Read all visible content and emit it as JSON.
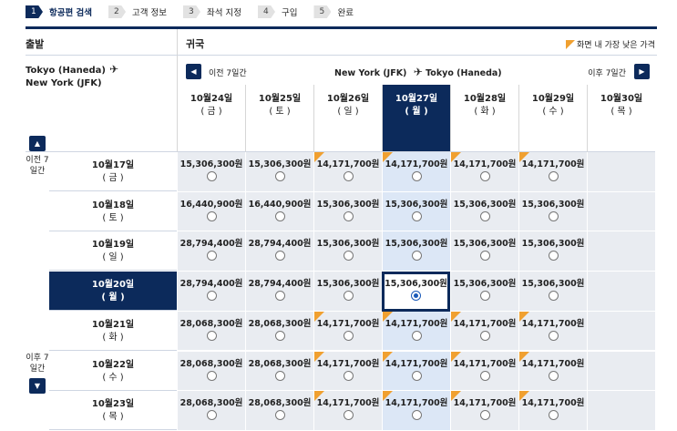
{
  "steps": [
    {
      "num": "1",
      "label": "항공편 검색",
      "active": true
    },
    {
      "num": "2",
      "label": "고객 정보",
      "active": false
    },
    {
      "num": "3",
      "label": "좌석 지정",
      "active": false
    },
    {
      "num": "4",
      "label": "구입",
      "active": false
    },
    {
      "num": "5",
      "label": "완료",
      "active": false
    }
  ],
  "header": {
    "departure": "출발",
    "return": "귀국",
    "legend": "화면 내 가장 낮은 가격"
  },
  "departure_route": {
    "from": "Tokyo (Haneda)",
    "to": "New York (JFK)"
  },
  "return_nav": {
    "prev_label": "이전 7일간",
    "next_label": "이후 7일간",
    "from": "New York (JFK)",
    "to": "Tokyo (Haneda)"
  },
  "side": {
    "prev_label": "이전 7\n일간",
    "next_label": "이후 7\n일간"
  },
  "return_dates": [
    {
      "date": "10월24일",
      "dow": "( 금 )"
    },
    {
      "date": "10월25일",
      "dow": "( 토 )"
    },
    {
      "date": "10월26일",
      "dow": "( 일 )"
    },
    {
      "date": "10월27일",
      "dow": "( 월 )"
    },
    {
      "date": "10월28일",
      "dow": "( 화 )"
    },
    {
      "date": "10월29일",
      "dow": "( 수 )"
    },
    {
      "date": "10월30일",
      "dow": "( 목 )"
    }
  ],
  "selected_col": 3,
  "selected_row": 3,
  "rows": [
    {
      "date": "10월17일",
      "dow": "( 금 )",
      "prices": [
        "15,306,300원",
        "15,306,300원",
        "14,171,700원",
        "14,171,700원",
        "14,171,700원",
        "14,171,700원",
        ""
      ],
      "lowest": [
        false,
        false,
        true,
        true,
        true,
        true,
        false
      ]
    },
    {
      "date": "10월18일",
      "dow": "( 토 )",
      "prices": [
        "16,440,900원",
        "16,440,900원",
        "15,306,300원",
        "15,306,300원",
        "15,306,300원",
        "15,306,300원",
        ""
      ],
      "lowest": [
        false,
        false,
        false,
        false,
        false,
        false,
        false
      ]
    },
    {
      "date": "10월19일",
      "dow": "( 일 )",
      "prices": [
        "28,794,400원",
        "28,794,400원",
        "15,306,300원",
        "15,306,300원",
        "15,306,300원",
        "15,306,300원",
        ""
      ],
      "lowest": [
        false,
        false,
        false,
        false,
        false,
        false,
        false
      ]
    },
    {
      "date": "10월20일",
      "dow": "( 월 )",
      "prices": [
        "28,794,400원",
        "28,794,400원",
        "15,306,300원",
        "15,306,300원",
        "15,306,300원",
        "15,306,300원",
        ""
      ],
      "lowest": [
        false,
        false,
        false,
        false,
        false,
        false,
        false
      ]
    },
    {
      "date": "10월21일",
      "dow": "( 화 )",
      "prices": [
        "28,068,300원",
        "28,068,300원",
        "14,171,700원",
        "14,171,700원",
        "14,171,700원",
        "14,171,700원",
        ""
      ],
      "lowest": [
        false,
        false,
        true,
        true,
        true,
        true,
        false
      ]
    },
    {
      "date": "10월22일",
      "dow": "( 수 )",
      "prices": [
        "28,068,300원",
        "28,068,300원",
        "14,171,700원",
        "14,171,700원",
        "14,171,700원",
        "14,171,700원",
        ""
      ],
      "lowest": [
        false,
        false,
        true,
        true,
        true,
        true,
        false
      ]
    },
    {
      "date": "10월23일",
      "dow": "( 목 )",
      "prices": [
        "28,068,300원",
        "28,068,300원",
        "14,171,700원",
        "14,171,700원",
        "14,171,700원",
        "14,171,700원",
        ""
      ],
      "lowest": [
        false,
        false,
        true,
        true,
        true,
        true,
        false
      ]
    }
  ],
  "colors": {
    "navy": "#0c2a5b",
    "cell": "#e9ecf1",
    "lowest_marker": "#f0a030"
  }
}
